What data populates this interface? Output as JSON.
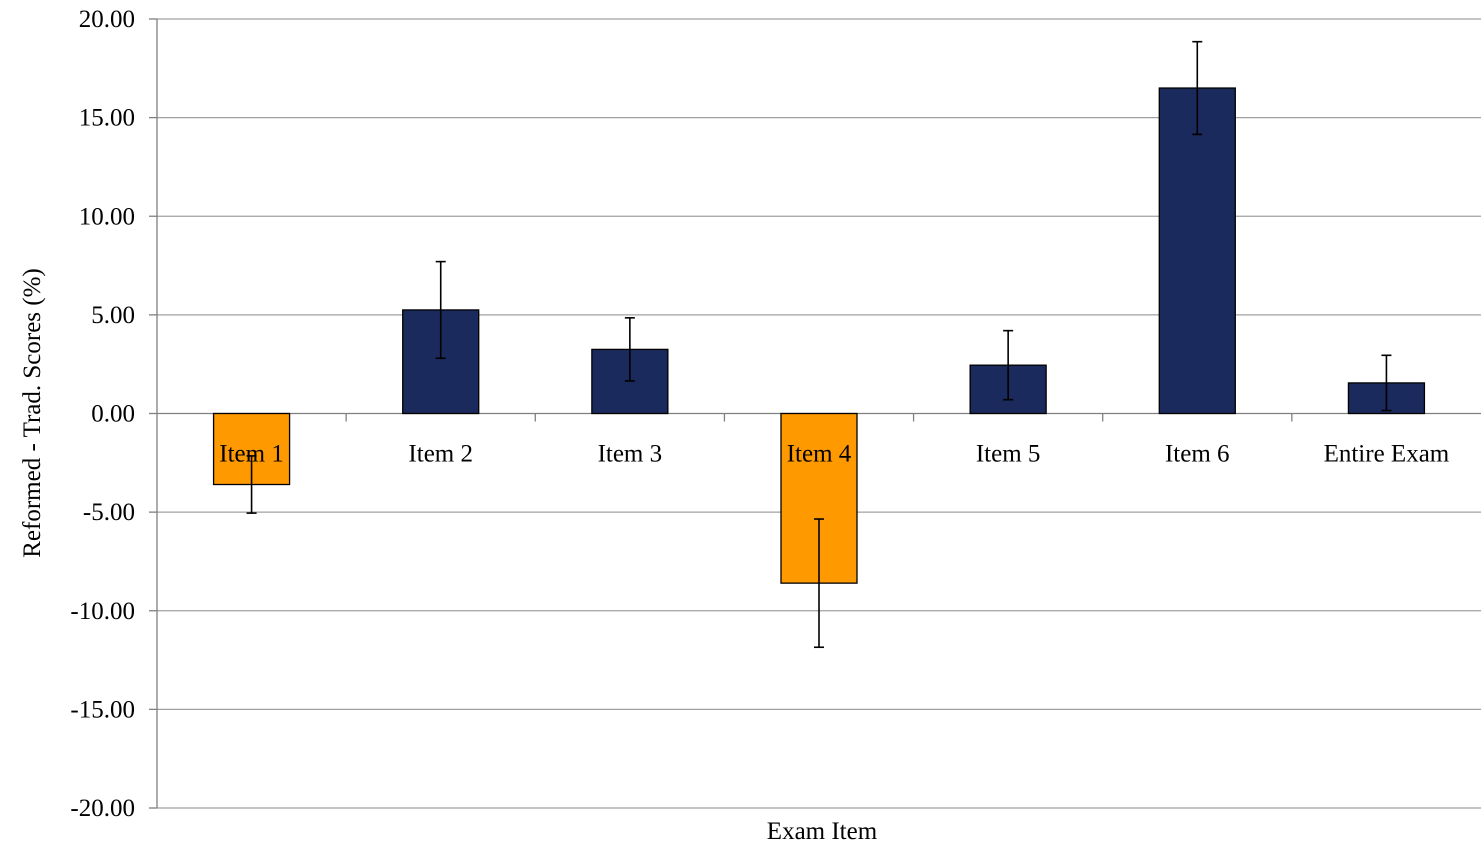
{
  "chart_data": {
    "type": "bar",
    "title": "",
    "xlabel": "Exam Item",
    "ylabel": "Reformed - Trad. Scores (%)",
    "ylim": [
      -20,
      20
    ],
    "yticks": [
      -20,
      -15,
      -10,
      -5,
      0,
      5,
      10,
      15,
      20
    ],
    "ytick_labels": [
      "-20.00",
      "-15.00",
      "-10.00",
      "-5.00",
      "0.00",
      "5.00",
      "10.00",
      "15.00",
      "20.00"
    ],
    "categories": [
      "Item 1",
      "Item 2",
      "Item 3",
      "Item 4",
      "Item 5",
      "Item 6",
      "Entire Exam"
    ],
    "values": [
      -3.6,
      5.25,
      3.25,
      -8.6,
      2.45,
      16.5,
      1.55
    ],
    "error": [
      1.45,
      2.45,
      1.6,
      3.25,
      1.75,
      2.35,
      1.4
    ],
    "grid": true,
    "colors": {
      "positive": "#1b2a5c",
      "negative": "#ff9900",
      "grid": "#a0a0a0",
      "axis": "#808080",
      "text": "#000000"
    }
  }
}
